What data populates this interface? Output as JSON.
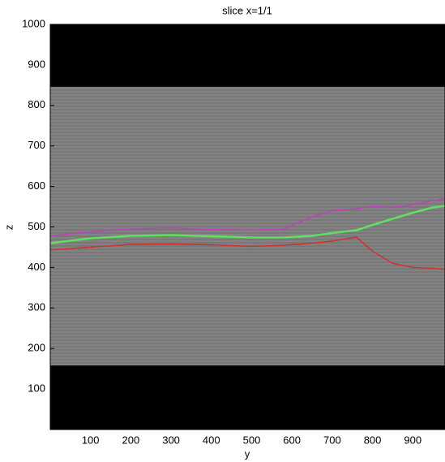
{
  "chart_data": {
    "type": "line",
    "title": "slice x=1/1",
    "x_label": "y",
    "y_label": "z",
    "x": [
      0,
      100,
      200,
      300,
      400,
      500,
      580,
      650,
      700,
      760,
      800,
      850,
      900,
      950,
      980
    ],
    "series": [
      {
        "color": "#c040c0",
        "values": [
          478,
          488,
          495,
          497,
          494,
          492,
          495,
          525,
          540,
          545,
          550,
          548,
          555,
          565,
          570
        ]
      },
      {
        "color": "#60e060",
        "values": [
          460,
          472,
          478,
          480,
          477,
          474,
          474,
          478,
          485,
          492,
          505,
          520,
          535,
          548,
          552
        ]
      },
      {
        "color": "#d03030",
        "values": [
          443,
          450,
          457,
          458,
          456,
          452,
          455,
          460,
          465,
          475,
          440,
          410,
          400,
          398,
          395
        ]
      }
    ],
    "image_zrange": [
      158,
      846
    ],
    "xlim": [
      0,
      980
    ],
    "ylim": [
      0,
      1000
    ],
    "xticks": [
      100,
      200,
      300,
      400,
      500,
      600,
      700,
      800,
      900
    ],
    "yticks": [
      100,
      200,
      300,
      400,
      500,
      600,
      700,
      800,
      900,
      1000
    ]
  }
}
